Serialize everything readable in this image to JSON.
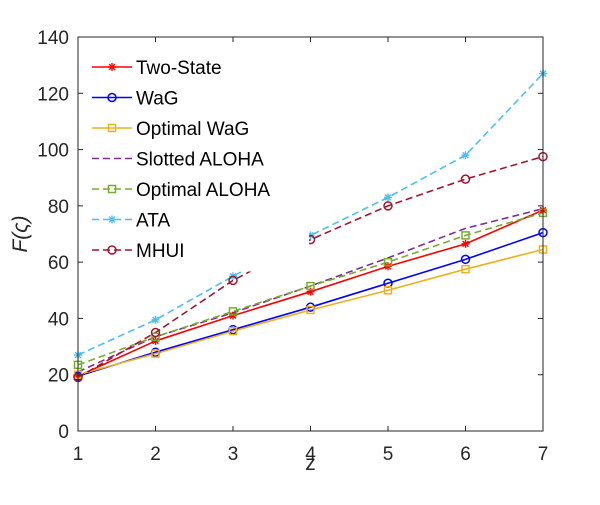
{
  "chart_data": {
    "type": "line",
    "title": "",
    "xlabel": "z",
    "ylabel": "F(ς)",
    "x": [
      1,
      2,
      3,
      4,
      5,
      6,
      7
    ],
    "xlim": [
      1,
      7
    ],
    "ylim": [
      0,
      140
    ],
    "xticks": [
      1,
      2,
      3,
      4,
      5,
      6,
      7
    ],
    "yticks": [
      0,
      20,
      40,
      60,
      80,
      100,
      120,
      140
    ],
    "grid": false,
    "legend_position": "top-left",
    "series": [
      {
        "name": "Two-State",
        "values": [
          19.5,
          32.0,
          41.0,
          49.5,
          58.5,
          66.5,
          78.5
        ],
        "color": "#ff0000",
        "dash": "solid",
        "marker": "asterisk"
      },
      {
        "name": "WaG",
        "values": [
          19.5,
          28.0,
          36.0,
          44.0,
          52.5,
          61.0,
          70.5
        ],
        "color": "#0000ff",
        "dash": "solid",
        "marker": "circle"
      },
      {
        "name": "Optimal WaG",
        "values": [
          20.0,
          27.5,
          35.5,
          43.0,
          50.0,
          57.5,
          64.5
        ],
        "color": "#edb120",
        "dash": "solid",
        "marker": "square"
      },
      {
        "name": "Slotted ALOHA",
        "values": [
          21.0,
          33.5,
          42.0,
          51.5,
          61.5,
          72.0,
          79.0
        ],
        "color": "#7e2f8e",
        "dash": "dashed",
        "marker": "none"
      },
      {
        "name": "Optimal ALOHA",
        "values": [
          23.5,
          33.5,
          42.5,
          51.5,
          60.0,
          69.5,
          77.5
        ],
        "color": "#77ac30",
        "dash": "dashed",
        "marker": "square"
      },
      {
        "name": "ATA",
        "values": [
          27.0,
          39.5,
          55.0,
          69.5,
          83.0,
          98.0,
          127.0
        ],
        "color": "#4dbeee",
        "dash": "dashed",
        "marker": "asterisk"
      },
      {
        "name": "MHUI",
        "values": [
          19.0,
          35.0,
          53.5,
          68.0,
          80.0,
          89.5,
          97.5
        ],
        "color": "#a2142f",
        "dash": "dashed",
        "marker": "circle"
      }
    ]
  }
}
